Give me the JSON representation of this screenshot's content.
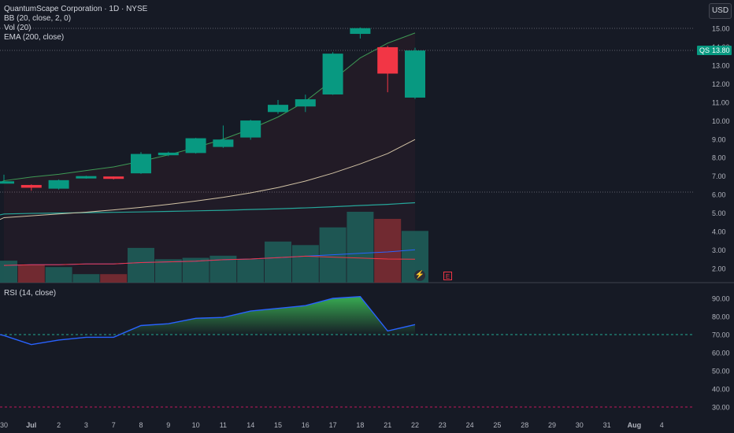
{
  "header": {
    "symbol_line": "QuantumScape Corporation · 1D · NYSE",
    "bb_label": "BB (20, close, 2, 0)",
    "vol_label": "Vol (20)",
    "ema_label": "EMA (200, close)",
    "rsi_label": "RSI (14, close)",
    "currency": "USD",
    "earnings_marker": "E",
    "event_icon": "lightning-icon"
  },
  "price_tag": {
    "symbol": "QS",
    "value": "13.80"
  },
  "colors": {
    "up": "#089981",
    "down": "#f23645",
    "bb_basis": "#d2c3a5",
    "bb_upper": "#3e9a55",
    "ema": "#26a69a",
    "rsi": "#2962ff",
    "vol_up": "#1e5d59",
    "vol_down": "#7a2c33",
    "vol_ma": "#2962ff",
    "vol_ma2": "#f23645"
  },
  "chart_data": [
    {
      "type": "candlestick",
      "title": "QuantumScape Corporation · 1D · NYSE",
      "x_tick_labels": [
        "30",
        "Jul",
        "2",
        "3",
        "7",
        "8",
        "9",
        "10",
        "11",
        "14",
        "15",
        "16",
        "17",
        "18",
        "21",
        "22",
        "23",
        "24",
        "25",
        "28",
        "29",
        "30",
        "31",
        "Aug",
        "4"
      ],
      "dates": [
        "Jun 30",
        "Jul 1",
        "Jul 2",
        "Jul 3",
        "Jul 7",
        "Jul 8",
        "Jul 9",
        "Jul 10",
        "Jul 11",
        "Jul 14",
        "Jul 15",
        "Jul 16",
        "Jul 17",
        "Jul 18",
        "Jul 21",
        "Jul 22"
      ],
      "open": [
        6.68,
        6.52,
        6.32,
        6.9,
        6.98,
        7.15,
        8.13,
        8.25,
        8.58,
        9.09,
        10.47,
        10.77,
        11.42,
        14.7,
        13.98,
        11.25
      ],
      "high": [
        7.08,
        6.55,
        6.82,
        7.02,
        6.98,
        8.3,
        8.32,
        9.07,
        9.74,
        10.05,
        11.12,
        11.41,
        13.71,
        15.05,
        14.05,
        13.95
      ],
      "low": [
        6.62,
        6.21,
        6.27,
        6.86,
        6.82,
        7.12,
        8.08,
        8.22,
        8.53,
        8.97,
        10.37,
        10.47,
        11.4,
        14.45,
        11.54,
        11.18
      ],
      "close": [
        6.72,
        6.37,
        6.78,
        7.0,
        6.85,
        8.2,
        8.27,
        9.05,
        8.98,
        10.01,
        10.86,
        11.16,
        13.63,
        15.01,
        12.55,
        13.8
      ],
      "bb_upper": [
        6.75,
        6.95,
        7.1,
        7.3,
        7.5,
        7.8,
        8.15,
        8.55,
        9.0,
        9.55,
        10.2,
        11.05,
        12.2,
        13.4,
        14.2,
        14.75
      ],
      "bb_basis": [
        4.75,
        4.85,
        4.95,
        5.05,
        5.17,
        5.31,
        5.47,
        5.65,
        5.85,
        6.09,
        6.38,
        6.73,
        7.16,
        7.66,
        8.22,
        8.98
      ],
      "ema_200": [
        4.95,
        4.98,
        5.0,
        5.02,
        5.04,
        5.06,
        5.09,
        5.12,
        5.15,
        5.19,
        5.23,
        5.28,
        5.34,
        5.41,
        5.47,
        5.56
      ],
      "volume_relative": [
        0.31,
        0.25,
        0.22,
        0.12,
        0.12,
        0.49,
        0.33,
        0.35,
        0.38,
        0.33,
        0.58,
        0.53,
        0.78,
        1.0,
        0.9,
        0.73
      ],
      "volume_ma_relative": [
        0.11,
        0.12,
        0.12,
        0.13,
        0.13,
        0.15,
        0.16,
        0.17,
        0.19,
        0.2,
        0.22,
        0.24,
        0.26,
        0.28,
        0.3,
        0.33
      ],
      "y_tick_labels": [
        "15.00",
        "14.00",
        "13.00",
        "12.00",
        "11.00",
        "10.00",
        "9.00",
        "8.00",
        "7.00",
        "6.00",
        "5.00",
        "4.00",
        "3.00",
        "2.00"
      ],
      "ylim": [
        1.2,
        15.6
      ],
      "last_price": 13.8,
      "grid": false
    },
    {
      "type": "line",
      "title": "RSI (14, close)",
      "values": [
        69.5,
        64.5,
        67.0,
        68.5,
        68.5,
        75.0,
        76.0,
        79.0,
        79.5,
        83.0,
        84.5,
        86.0,
        90.0,
        91.0,
        72.0,
        75.5
      ],
      "y_tick_labels": [
        "90.00",
        "80.00",
        "70.00",
        "60.00",
        "50.00",
        "40.00",
        "30.00"
      ],
      "ylim": [
        26.5,
        93.5
      ],
      "bands": [
        30,
        70
      ],
      "fill_above": 70
    }
  ]
}
